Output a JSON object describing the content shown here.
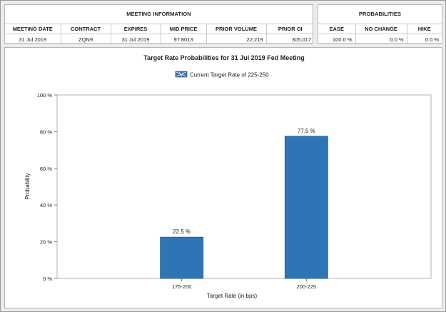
{
  "meeting_info": {
    "title": "MEETING INFORMATION",
    "headers": [
      "MEETING DATE",
      "CONTRACT",
      "EXPIRES",
      "MID PRICE",
      "PRIOR VOLUME",
      "PRIOR OI"
    ],
    "row": [
      "31 Jul 2019",
      "ZQN9",
      "31 Jul 2019",
      "97.8013",
      "22,219",
      "305,017"
    ]
  },
  "probabilities": {
    "title": "PROBABILITIES",
    "headers": [
      "EASE",
      "NO CHANGE",
      "HIKE"
    ],
    "row": [
      "100.0 %",
      "0.0 %",
      "0.0 %"
    ]
  },
  "chart_data": {
    "type": "bar",
    "title": "Target Rate Probabilities for 31 Jul 2019 Fed Meeting",
    "legend": "Current Target Rate of 225-250",
    "legend_position": "top-center",
    "categories": [
      "175-200",
      "200-225"
    ],
    "values": [
      22.5,
      77.5
    ],
    "value_labels": [
      "22.5 %",
      "77.5 %"
    ],
    "xlabel": "Target Rate (in bps)",
    "ylabel": "Probability",
    "ylim": [
      0,
      100
    ],
    "yticks": [
      0,
      20,
      40,
      60,
      80,
      100
    ],
    "ytick_labels": [
      "0 %",
      "20 %",
      "40 %",
      "60 %",
      "80 %",
      "100 %"
    ],
    "grid": true,
    "bar_color": "#2e75b6",
    "legend_swatch_color": "#3a6fb0"
  }
}
